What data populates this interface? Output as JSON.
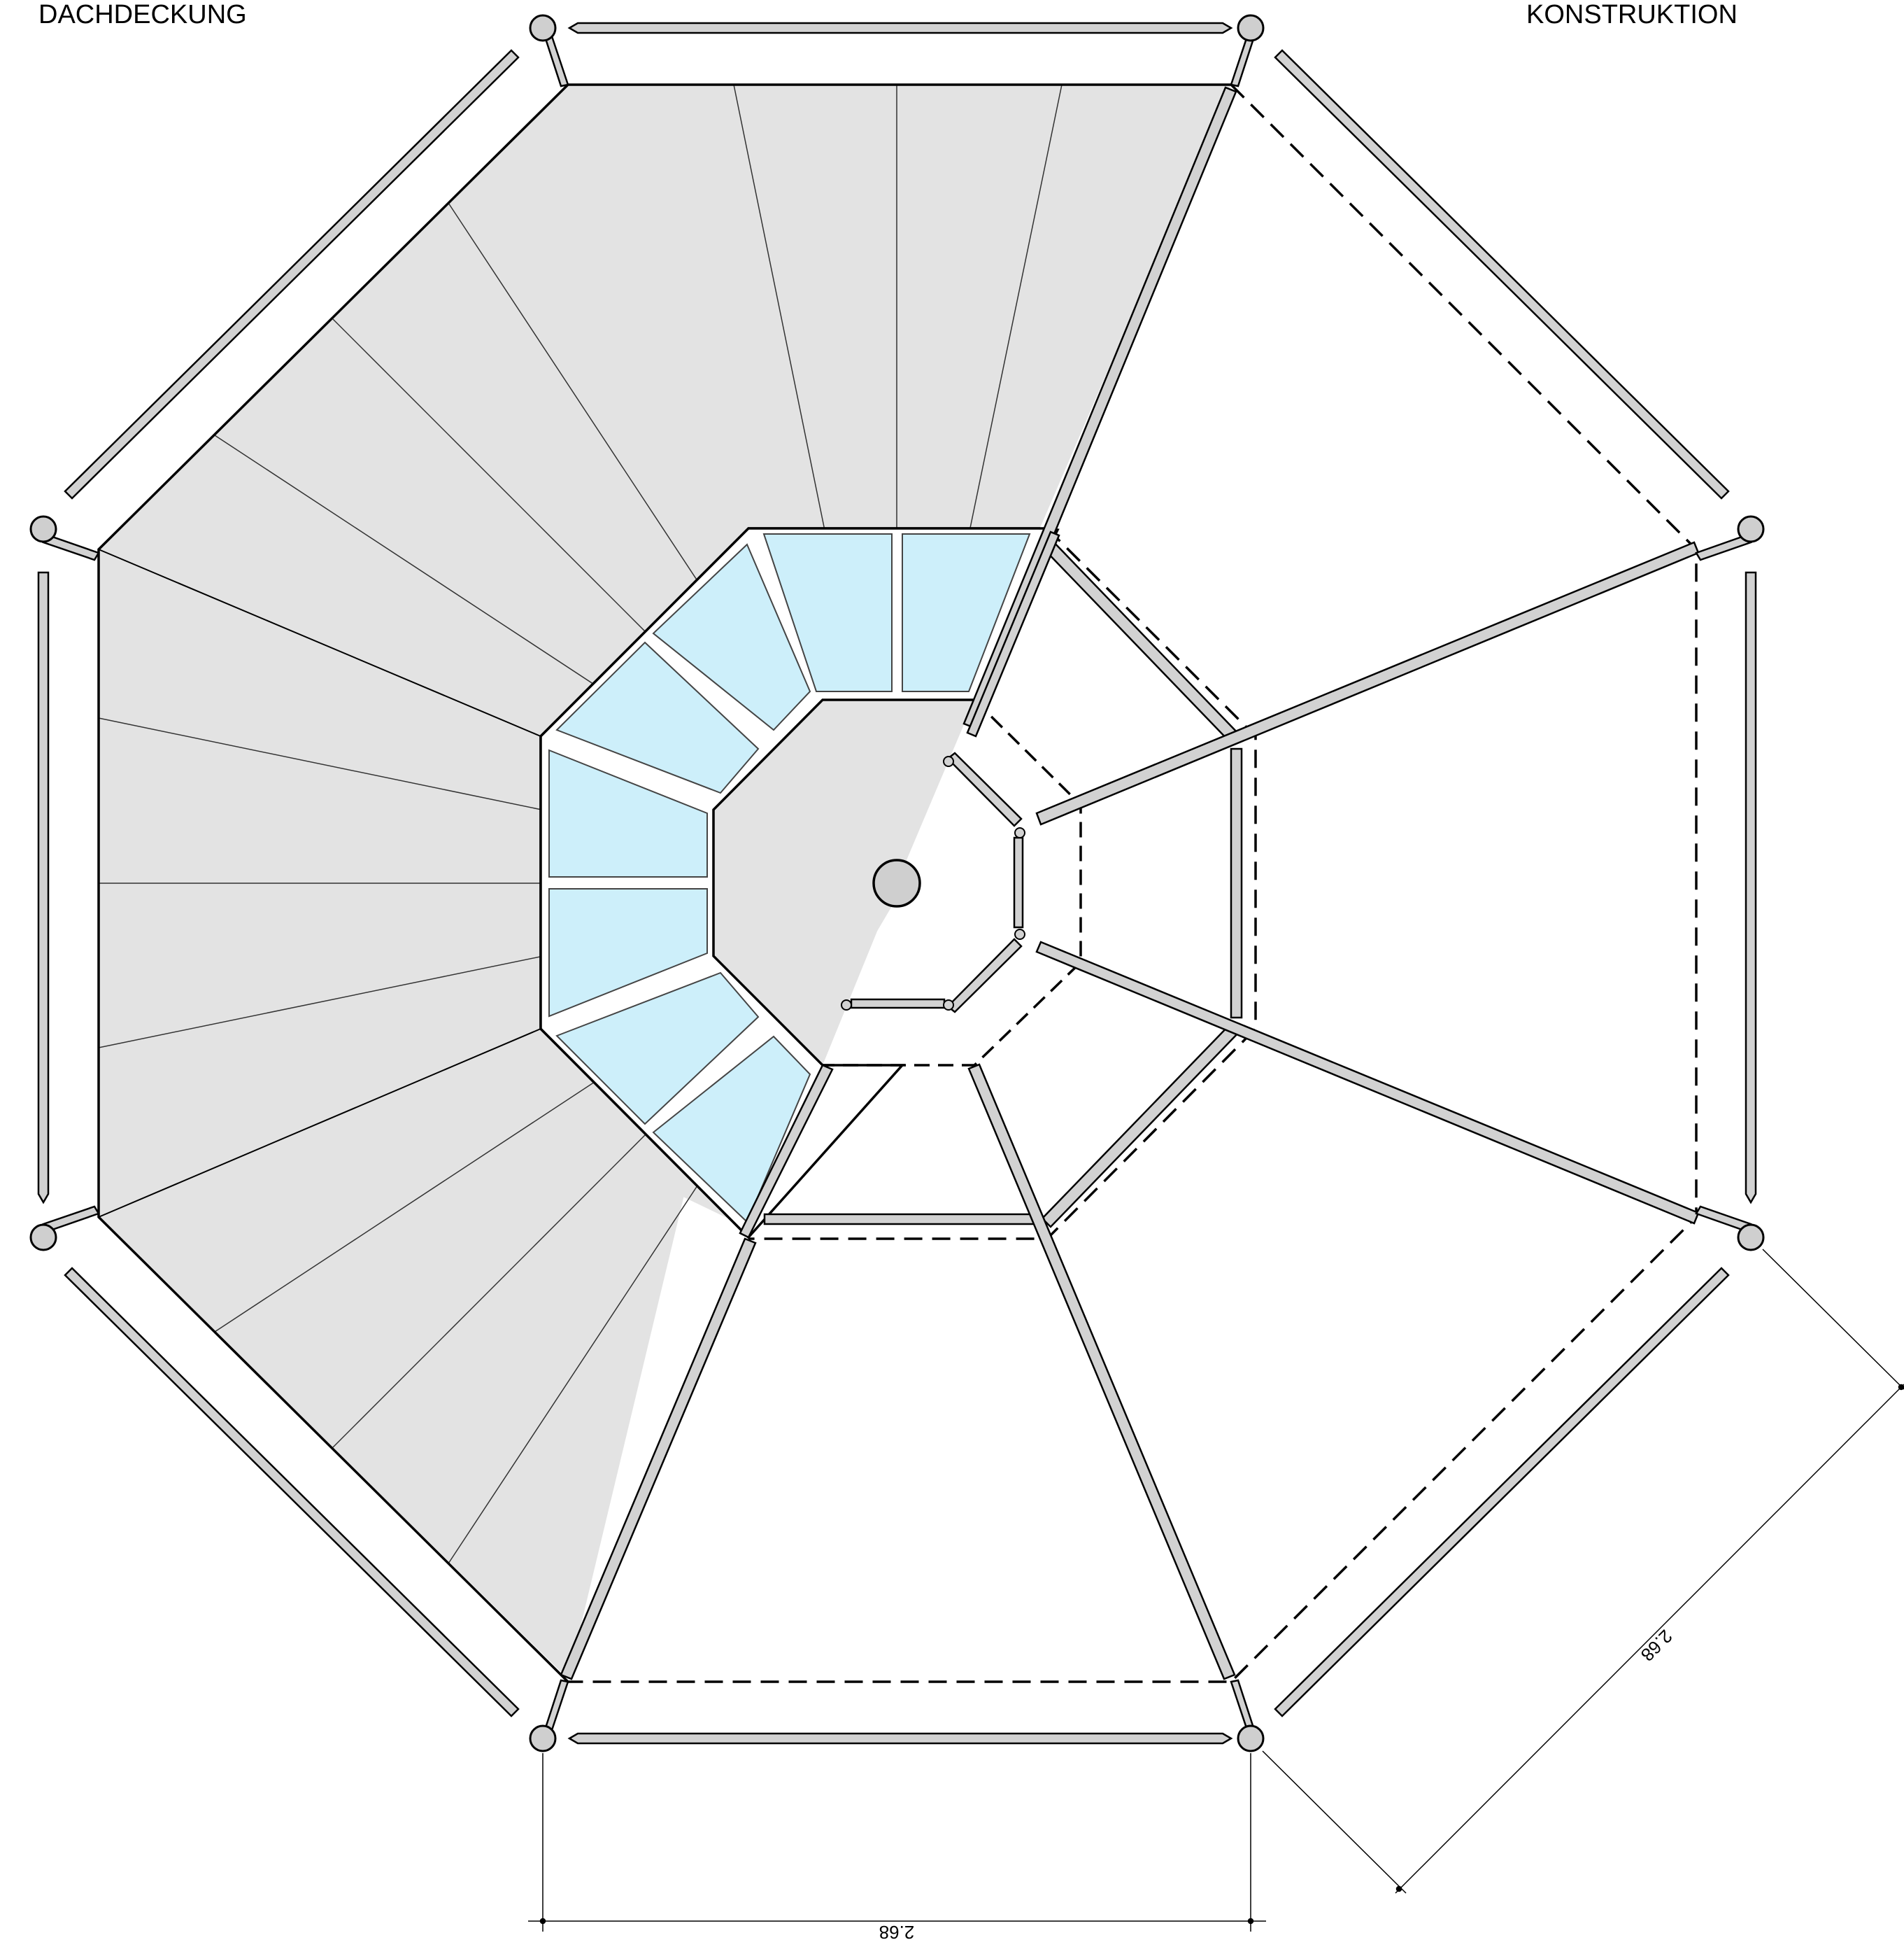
{
  "labels": {
    "left": "DACHDECKUNG",
    "right": "KONSTRUKTION"
  },
  "dimensions": {
    "bottom": "2.68",
    "diagonal": "2.68"
  },
  "colors": {
    "roof_fill": "#e3e3e3",
    "glass_fill": "#cdeffa",
    "member_fill": "#d2d2d2",
    "line": "#000000"
  }
}
